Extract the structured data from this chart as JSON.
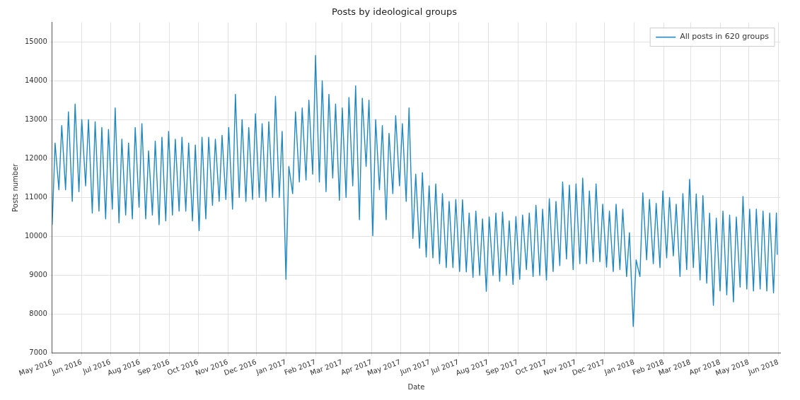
{
  "chart_data": {
    "type": "line",
    "title": "Posts by ideological groups",
    "xlabel": "Date",
    "ylabel": "Posts number",
    "xlim": [
      "2016-05-01",
      "2018-06-03"
    ],
    "ylim": [
      7000,
      15500
    ],
    "yticks": [
      7000,
      8000,
      9000,
      10000,
      11000,
      12000,
      13000,
      14000,
      15000
    ],
    "xticks": [
      {
        "value": "2016-05-01",
        "label": "May 2016"
      },
      {
        "value": "2016-06-01",
        "label": "Jun 2016"
      },
      {
        "value": "2016-07-01",
        "label": "Jul 2016"
      },
      {
        "value": "2016-08-01",
        "label": "Aug 2016"
      },
      {
        "value": "2016-09-01",
        "label": "Sep 2016"
      },
      {
        "value": "2016-10-01",
        "label": "Oct 2016"
      },
      {
        "value": "2016-11-01",
        "label": "Nov 2016"
      },
      {
        "value": "2016-12-01",
        "label": "Dec 2016"
      },
      {
        "value": "2017-01-01",
        "label": "Jan 2017"
      },
      {
        "value": "2017-02-01",
        "label": "Feb 2017"
      },
      {
        "value": "2017-03-01",
        "label": "Mar 2017"
      },
      {
        "value": "2017-04-01",
        "label": "Apr 2017"
      },
      {
        "value": "2017-05-01",
        "label": "May 2017"
      },
      {
        "value": "2017-06-01",
        "label": "Jun 2017"
      },
      {
        "value": "2017-07-01",
        "label": "Jul 2017"
      },
      {
        "value": "2017-08-01",
        "label": "Aug 2017"
      },
      {
        "value": "2017-09-01",
        "label": "Sep 2017"
      },
      {
        "value": "2017-10-01",
        "label": "Oct 2017"
      },
      {
        "value": "2017-11-01",
        "label": "Nov 2017"
      },
      {
        "value": "2017-12-01",
        "label": "Dec 2017"
      },
      {
        "value": "2018-01-01",
        "label": "Jan 2018"
      },
      {
        "value": "2018-02-01",
        "label": "Feb 2018"
      },
      {
        "value": "2018-03-01",
        "label": "Mar 2018"
      },
      {
        "value": "2018-04-01",
        "label": "Apr 2018"
      },
      {
        "value": "2018-05-01",
        "label": "May 2018"
      },
      {
        "value": "2018-06-01",
        "label": "Jun 2018"
      }
    ],
    "grid": true,
    "legend": "top right",
    "line_style": "solid",
    "marker": "none",
    "series": [
      {
        "name": "All posts in 620 groups",
        "color": "#1f88c0",
        "x": [
          "2016-05-01",
          "2016-05-04",
          "2016-05-08",
          "2016-05-11",
          "2016-05-15",
          "2016-05-18",
          "2016-05-22",
          "2016-05-25",
          "2016-05-29",
          "2016-06-01",
          "2016-06-05",
          "2016-06-08",
          "2016-06-12",
          "2016-06-15",
          "2016-06-19",
          "2016-06-22",
          "2016-06-26",
          "2016-06-29",
          "2016-07-03",
          "2016-07-06",
          "2016-07-10",
          "2016-07-13",
          "2016-07-17",
          "2016-07-20",
          "2016-07-24",
          "2016-07-27",
          "2016-07-31",
          "2016-08-03",
          "2016-08-07",
          "2016-08-10",
          "2016-08-14",
          "2016-08-17",
          "2016-08-21",
          "2016-08-24",
          "2016-08-28",
          "2016-08-31",
          "2016-09-04",
          "2016-09-07",
          "2016-09-11",
          "2016-09-14",
          "2016-09-18",
          "2016-09-21",
          "2016-09-25",
          "2016-09-28",
          "2016-10-02",
          "2016-10-05",
          "2016-10-09",
          "2016-10-12",
          "2016-10-16",
          "2016-10-19",
          "2016-10-23",
          "2016-10-26",
          "2016-10-30",
          "2016-11-02",
          "2016-11-06",
          "2016-11-09",
          "2016-11-13",
          "2016-11-16",
          "2016-11-20",
          "2016-11-23",
          "2016-11-27",
          "2016-11-30",
          "2016-12-04",
          "2016-12-07",
          "2016-12-11",
          "2016-12-14",
          "2016-12-18",
          "2016-12-21",
          "2016-12-25",
          "2016-12-28",
          "2017-01-01",
          "2017-01-04",
          "2017-01-08",
          "2017-01-11",
          "2017-01-15",
          "2017-01-18",
          "2017-01-22",
          "2017-01-25",
          "2017-01-29",
          "2017-02-01",
          "2017-02-05",
          "2017-02-08",
          "2017-02-12",
          "2017-02-15",
          "2017-02-19",
          "2017-02-22",
          "2017-02-26",
          "2017-03-01",
          "2017-03-05",
          "2017-03-08",
          "2017-03-12",
          "2017-03-15",
          "2017-03-19",
          "2017-03-22",
          "2017-03-26",
          "2017-03-29",
          "2017-04-02",
          "2017-04-05",
          "2017-04-09",
          "2017-04-12",
          "2017-04-16",
          "2017-04-19",
          "2017-04-23",
          "2017-04-26",
          "2017-04-30",
          "2017-05-03",
          "2017-05-07",
          "2017-05-10",
          "2017-05-14",
          "2017-05-17",
          "2017-05-21",
          "2017-05-24",
          "2017-05-28",
          "2017-05-31",
          "2017-06-04",
          "2017-06-07",
          "2017-06-11",
          "2017-06-14",
          "2017-06-18",
          "2017-06-21",
          "2017-06-25",
          "2017-06-28",
          "2017-07-02",
          "2017-07-05",
          "2017-07-09",
          "2017-07-12",
          "2017-07-16",
          "2017-07-19",
          "2017-07-23",
          "2017-07-26",
          "2017-07-30",
          "2017-08-02",
          "2017-08-06",
          "2017-08-09",
          "2017-08-13",
          "2017-08-16",
          "2017-08-20",
          "2017-08-23",
          "2017-08-27",
          "2017-08-30",
          "2017-09-03",
          "2017-09-06",
          "2017-09-10",
          "2017-09-13",
          "2017-09-17",
          "2017-09-20",
          "2017-09-24",
          "2017-09-27",
          "2017-10-01",
          "2017-10-04",
          "2017-10-08",
          "2017-10-11",
          "2017-10-15",
          "2017-10-18",
          "2017-10-22",
          "2017-10-25",
          "2017-10-29",
          "2017-11-01",
          "2017-11-05",
          "2017-11-08",
          "2017-11-12",
          "2017-11-15",
          "2017-11-19",
          "2017-11-22",
          "2017-11-26",
          "2017-11-29",
          "2017-12-03",
          "2017-12-06",
          "2017-12-10",
          "2017-12-13",
          "2017-12-17",
          "2017-12-20",
          "2017-12-24",
          "2017-12-27",
          "2017-12-31",
          "2018-01-03",
          "2018-01-07",
          "2018-01-10",
          "2018-01-14",
          "2018-01-17",
          "2018-01-21",
          "2018-01-24",
          "2018-01-28",
          "2018-01-31",
          "2018-02-04",
          "2018-02-07",
          "2018-02-11",
          "2018-02-14",
          "2018-02-18",
          "2018-02-21",
          "2018-02-25",
          "2018-02-28",
          "2018-03-04",
          "2018-03-07",
          "2018-03-11",
          "2018-03-14",
          "2018-03-18",
          "2018-03-21",
          "2018-03-25",
          "2018-03-28",
          "2018-04-01",
          "2018-04-04",
          "2018-04-08",
          "2018-04-11",
          "2018-04-15",
          "2018-04-18",
          "2018-04-22",
          "2018-04-25",
          "2018-04-29",
          "2018-05-02",
          "2018-05-06",
          "2018-05-09",
          "2018-05-13",
          "2018-05-16",
          "2018-05-20",
          "2018-05-23",
          "2018-05-27",
          "2018-05-30",
          "2018-05-31"
        ],
        "values": [
          10300,
          12400,
          11200,
          12850,
          11200,
          13200,
          10900,
          13400,
          11150,
          13000,
          11300,
          13000,
          10600,
          12950,
          10650,
          12800,
          10450,
          12750,
          10700,
          13300,
          10350,
          12500,
          10550,
          12400,
          10450,
          12800,
          10750,
          12900,
          10450,
          12200,
          10550,
          12450,
          10300,
          12550,
          10400,
          12700,
          10550,
          12500,
          10650,
          12550,
          10650,
          12400,
          10400,
          12350,
          10150,
          12550,
          10450,
          12550,
          10800,
          12500,
          10900,
          12600,
          10950,
          12800,
          10700,
          13650,
          11000,
          13000,
          10900,
          12800,
          10950,
          13150,
          11000,
          12900,
          10900,
          12950,
          11000,
          13600,
          11000,
          12700,
          8900,
          11800,
          11100,
          13200,
          11400,
          13300,
          11450,
          13500,
          11600,
          14650,
          11400,
          14000,
          11150,
          13650,
          11500,
          13400,
          10930,
          13300,
          11000,
          13570,
          11300,
          13870,
          10430,
          13550,
          11800,
          13500,
          10020,
          13000,
          11200,
          12850,
          10430,
          12650,
          11100,
          13100,
          11300,
          12900,
          10900,
          13300,
          9950,
          11600,
          9700,
          11640,
          9470,
          11300,
          9450,
          11350,
          9300,
          11100,
          9200,
          10900,
          9200,
          10950,
          9100,
          10940,
          9090,
          10600,
          8950,
          10650,
          9000,
          10450,
          8590,
          10500,
          9000,
          10600,
          8850,
          10630,
          9000,
          10400,
          8770,
          10510,
          8900,
          10550,
          9150,
          10600,
          8970,
          10800,
          9000,
          10700,
          8880,
          10970,
          9100,
          10900,
          9250,
          11400,
          9420,
          11320,
          9150,
          11350,
          9300,
          11500,
          9300,
          11170,
          9350,
          11350,
          9350,
          10830,
          9210,
          10650,
          9100,
          10830,
          9150,
          10700,
          8970,
          10100,
          7690,
          9400,
          8970,
          11120,
          9400,
          10950,
          9300,
          10850,
          9200,
          11170,
          9450,
          11000,
          9500,
          10830,
          8970,
          11100,
          9150,
          11470,
          9200,
          11090,
          8880,
          11050,
          8800,
          10600,
          8230,
          10470,
          8600,
          10650,
          8500,
          10550,
          8320,
          10500,
          8700,
          11030,
          8650,
          10700,
          8600,
          10700,
          8650,
          10650,
          8600,
          10600,
          8550,
          10600,
          9530
        ]
      }
    ]
  }
}
